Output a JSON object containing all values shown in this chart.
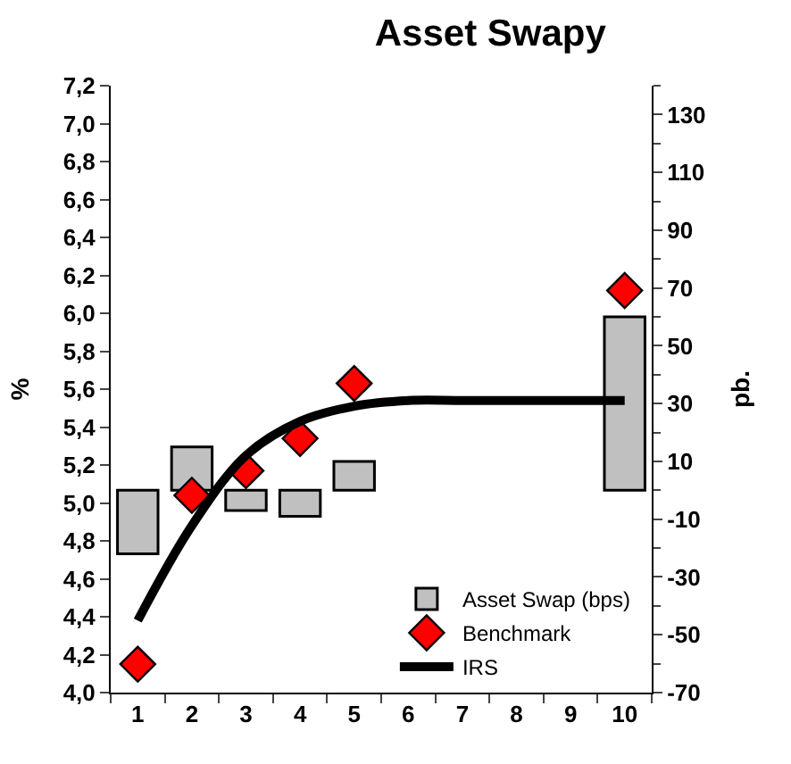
{
  "chart_data": {
    "type": "bar",
    "title": "Asset Swapy",
    "ylabel": "%",
    "y2label": "pb.",
    "categories": [
      "1",
      "2",
      "3",
      "4",
      "5",
      "6",
      "7",
      "8",
      "9",
      "10"
    ],
    "series": [
      {
        "name": "Asset Swap (bps)",
        "axis": "y2",
        "color": "#c0c0c0",
        "values": [
          -22,
          15,
          -7,
          -9,
          10,
          null,
          null,
          null,
          null,
          60
        ]
      },
      {
        "name": "Benchmark",
        "type": "scatter",
        "marker": "diamond",
        "color": "#ff0000",
        "values": [
          4.15,
          5.04,
          5.17,
          5.34,
          5.63,
          null,
          null,
          null,
          null,
          6.12
        ]
      },
      {
        "name": "IRS",
        "type": "line",
        "marker": "none",
        "color": "#000000",
        "values": [
          4.38,
          4.88,
          5.25,
          5.43,
          5.51,
          5.54,
          5.54,
          5.54,
          5.54,
          5.54
        ]
      }
    ],
    "ylim": [
      4.0,
      7.2
    ],
    "yticks": [
      {
        "value": 4.0,
        "label": "4,0"
      },
      {
        "value": 4.2,
        "label": "4,2"
      },
      {
        "value": 4.4,
        "label": "4,4"
      },
      {
        "value": 4.6,
        "label": "4,6"
      },
      {
        "value": 4.8,
        "label": "4,8"
      },
      {
        "value": 5.0,
        "label": "5,0"
      },
      {
        "value": 5.2,
        "label": "5,2"
      },
      {
        "value": 5.4,
        "label": "5,4"
      },
      {
        "value": 5.6,
        "label": "5,6"
      },
      {
        "value": 5.8,
        "label": "5,8"
      },
      {
        "value": 6.0,
        "label": "6,0"
      },
      {
        "value": 6.2,
        "label": "6,2"
      },
      {
        "value": 6.4,
        "label": "6,4"
      },
      {
        "value": 6.6,
        "label": "6,6"
      },
      {
        "value": 6.8,
        "label": "6,8"
      },
      {
        "value": 7.0,
        "label": "7,0"
      },
      {
        "value": 7.2,
        "label": "7,2"
      }
    ],
    "y2lim": [
      -70,
      140
    ],
    "y2ticks": [
      -70,
      -50,
      -30,
      -10,
      10,
      30,
      50,
      70,
      90,
      110,
      130
    ],
    "legend": "bottom right"
  }
}
